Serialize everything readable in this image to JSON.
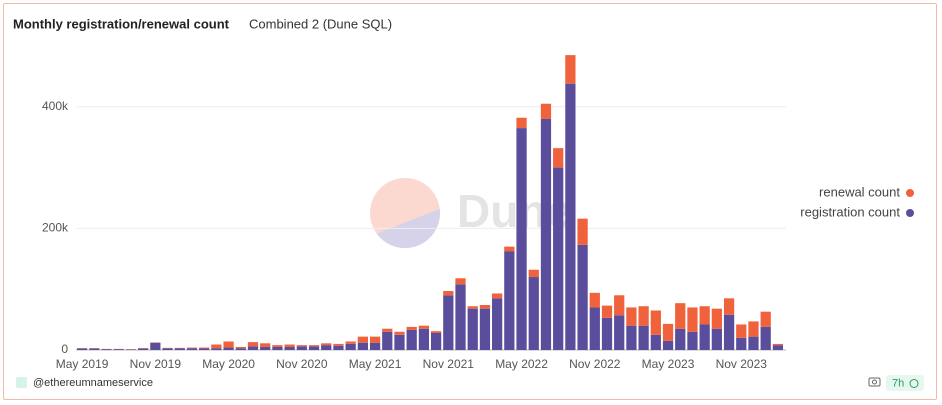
{
  "chart_data": {
    "type": "stacked_bar",
    "title": "Monthly registration/renewal count",
    "subtitle": "Combined 2 (Dune SQL)",
    "watermark": "Dune",
    "categories": [
      "May 2019",
      null,
      null,
      null,
      null,
      null,
      "Nov 2019",
      null,
      null,
      null,
      null,
      null,
      "May 2020",
      null,
      null,
      null,
      null,
      null,
      "Nov 2020",
      null,
      null,
      null,
      null,
      null,
      "May 2021",
      null,
      null,
      null,
      null,
      null,
      "Nov 2021",
      null,
      null,
      null,
      null,
      null,
      "May 2022",
      null,
      null,
      null,
      null,
      null,
      "Nov 2022",
      null,
      null,
      null,
      null,
      null,
      "May 2023",
      null,
      null,
      null,
      null,
      null,
      "Nov 2023",
      null,
      null,
      null
    ],
    "series": [
      {
        "name": "registration count",
        "color": "#5a4e9c",
        "values": [
          2500,
          2500,
          1500,
          1500,
          1000,
          2500,
          12000,
          3000,
          3000,
          3000,
          2500,
          3000,
          4000,
          3000,
          6000,
          5000,
          5000,
          5000,
          6000,
          6000,
          8000,
          7000,
          10000,
          12000,
          12000,
          30000,
          25000,
          33000,
          35000,
          28000,
          90000,
          108000,
          68000,
          68000,
          85000,
          162000,
          365000,
          120000,
          380000,
          300000,
          438000,
          173000,
          70000,
          53000,
          57000,
          40000,
          40000,
          25000,
          15000,
          35000,
          30000,
          42000,
          35000,
          58000,
          20000,
          22000,
          38000,
          8000
        ]
      },
      {
        "name": "renewal count",
        "color": "#f0623c",
        "values": [
          500,
          500,
          300,
          300,
          300,
          500,
          500,
          500,
          500,
          1000,
          1500,
          6000,
          10000,
          2000,
          7000,
          6000,
          3000,
          4000,
          2000,
          2000,
          3000,
          3000,
          4000,
          10000,
          10000,
          5000,
          5000,
          5000,
          5000,
          3000,
          7000,
          10000,
          4000,
          6000,
          8000,
          8000,
          17000,
          12000,
          25000,
          32000,
          47000,
          43000,
          24000,
          20000,
          33000,
          30000,
          32000,
          40000,
          28000,
          42000,
          40000,
          30000,
          33000,
          27000,
          22000,
          25000,
          25000,
          2000
        ]
      }
    ],
    "ylim": [
      0,
      500000
    ],
    "yticks": [
      0,
      {
        "value": 200000,
        "label": "200k"
      },
      {
        "value": 400000,
        "label": "400k"
      }
    ],
    "grid": true,
    "legend": "right"
  },
  "footer": {
    "author": "@ethereumnameservice",
    "age": "7h"
  }
}
